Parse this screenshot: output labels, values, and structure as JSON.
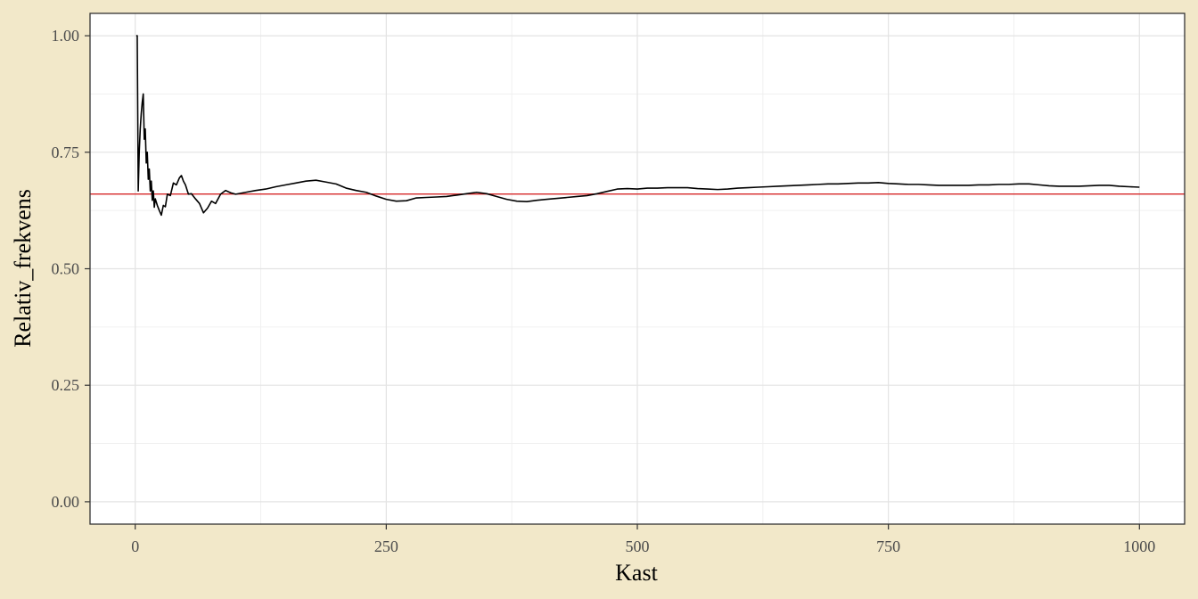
{
  "chart_data": {
    "type": "line",
    "title": "",
    "xlabel": "Kast",
    "ylabel": "Relativ_frekvens",
    "xlim": [
      -45,
      1045
    ],
    "ylim": [
      -0.048,
      1.048
    ],
    "x_ticks": [
      0,
      250,
      500,
      750,
      1000
    ],
    "x_tick_labels": [
      "0",
      "250",
      "500",
      "750",
      "1000"
    ],
    "y_ticks": [
      0,
      0.25,
      0.5,
      0.75,
      1.0
    ],
    "y_tick_labels": [
      "0.00",
      "0.25",
      "0.50",
      "0.75",
      "1.00"
    ],
    "grid": true,
    "legend": "none",
    "reference_line": {
      "y": 0.6603,
      "color": "#d62728"
    },
    "series": [
      {
        "color": "#000000",
        "points": [
          [
            1,
            1.0
          ],
          [
            2,
            1.0
          ],
          [
            3,
            0.667
          ],
          [
            4,
            0.75
          ],
          [
            5,
            0.8
          ],
          [
            6,
            0.833
          ],
          [
            7,
            0.857
          ],
          [
            8,
            0.875
          ],
          [
            9,
            0.778
          ],
          [
            10,
            0.8
          ],
          [
            11,
            0.727
          ],
          [
            12,
            0.75
          ],
          [
            13,
            0.692
          ],
          [
            14,
            0.714
          ],
          [
            15,
            0.667
          ],
          [
            16,
            0.688
          ],
          [
            17,
            0.647
          ],
          [
            18,
            0.667
          ],
          [
            19,
            0.632
          ],
          [
            20,
            0.65
          ],
          [
            22,
            0.636
          ],
          [
            24,
            0.625
          ],
          [
            26,
            0.615
          ],
          [
            28,
            0.636
          ],
          [
            30,
            0.633
          ],
          [
            32,
            0.66
          ],
          [
            35,
            0.657
          ],
          [
            38,
            0.684
          ],
          [
            41,
            0.68
          ],
          [
            44,
            0.695
          ],
          [
            46,
            0.7
          ],
          [
            48,
            0.688
          ],
          [
            50,
            0.68
          ],
          [
            53,
            0.66
          ],
          [
            56,
            0.661
          ],
          [
            60,
            0.65
          ],
          [
            64,
            0.64
          ],
          [
            68,
            0.62
          ],
          [
            72,
            0.63
          ],
          [
            76,
            0.645
          ],
          [
            80,
            0.64
          ],
          [
            85,
            0.66
          ],
          [
            90,
            0.668
          ],
          [
            95,
            0.663
          ],
          [
            100,
            0.66
          ],
          [
            110,
            0.664
          ],
          [
            120,
            0.668
          ],
          [
            130,
            0.671
          ],
          [
            140,
            0.676
          ],
          [
            150,
            0.68
          ],
          [
            160,
            0.684
          ],
          [
            170,
            0.688
          ],
          [
            180,
            0.69
          ],
          [
            190,
            0.686
          ],
          [
            200,
            0.682
          ],
          [
            210,
            0.673
          ],
          [
            220,
            0.668
          ],
          [
            230,
            0.664
          ],
          [
            240,
            0.656
          ],
          [
            250,
            0.649
          ],
          [
            260,
            0.645
          ],
          [
            270,
            0.646
          ],
          [
            280,
            0.652
          ],
          [
            290,
            0.653
          ],
          [
            300,
            0.654
          ],
          [
            310,
            0.655
          ],
          [
            320,
            0.658
          ],
          [
            330,
            0.661
          ],
          [
            340,
            0.664
          ],
          [
            350,
            0.661
          ],
          [
            360,
            0.655
          ],
          [
            370,
            0.649
          ],
          [
            380,
            0.645
          ],
          [
            390,
            0.644
          ],
          [
            400,
            0.647
          ],
          [
            410,
            0.649
          ],
          [
            420,
            0.651
          ],
          [
            430,
            0.653
          ],
          [
            440,
            0.655
          ],
          [
            450,
            0.657
          ],
          [
            460,
            0.661
          ],
          [
            470,
            0.666
          ],
          [
            480,
            0.671
          ],
          [
            490,
            0.672
          ],
          [
            500,
            0.671
          ],
          [
            510,
            0.673
          ],
          [
            520,
            0.673
          ],
          [
            530,
            0.674
          ],
          [
            540,
            0.674
          ],
          [
            550,
            0.674
          ],
          [
            560,
            0.672
          ],
          [
            570,
            0.671
          ],
          [
            580,
            0.67
          ],
          [
            590,
            0.671
          ],
          [
            600,
            0.673
          ],
          [
            610,
            0.674
          ],
          [
            620,
            0.675
          ],
          [
            630,
            0.676
          ],
          [
            640,
            0.677
          ],
          [
            650,
            0.678
          ],
          [
            660,
            0.679
          ],
          [
            670,
            0.68
          ],
          [
            680,
            0.681
          ],
          [
            690,
            0.682
          ],
          [
            700,
            0.682
          ],
          [
            710,
            0.683
          ],
          [
            720,
            0.684
          ],
          [
            730,
            0.684
          ],
          [
            740,
            0.685
          ],
          [
            750,
            0.683
          ],
          [
            760,
            0.682
          ],
          [
            770,
            0.681
          ],
          [
            780,
            0.681
          ],
          [
            790,
            0.68
          ],
          [
            800,
            0.679
          ],
          [
            810,
            0.679
          ],
          [
            820,
            0.679
          ],
          [
            830,
            0.679
          ],
          [
            840,
            0.68
          ],
          [
            850,
            0.68
          ],
          [
            860,
            0.681
          ],
          [
            870,
            0.681
          ],
          [
            880,
            0.682
          ],
          [
            890,
            0.682
          ],
          [
            900,
            0.68
          ],
          [
            910,
            0.678
          ],
          [
            920,
            0.677
          ],
          [
            930,
            0.677
          ],
          [
            940,
            0.677
          ],
          [
            950,
            0.678
          ],
          [
            960,
            0.679
          ],
          [
            970,
            0.679
          ],
          [
            980,
            0.677
          ],
          [
            990,
            0.676
          ],
          [
            1000,
            0.675
          ]
        ]
      }
    ]
  }
}
